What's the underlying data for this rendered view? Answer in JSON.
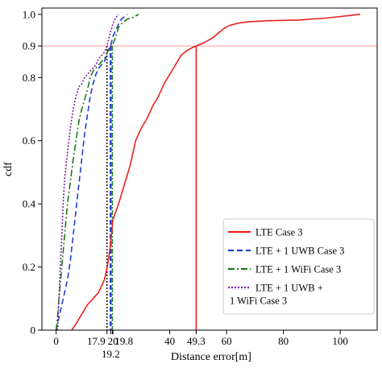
{
  "chart_data": {
    "type": "line",
    "xlabel": "Distance error[m]",
    "ylabel": "cdf",
    "xlim": [
      -5,
      113
    ],
    "ylim": [
      0,
      1.02
    ],
    "x_ticks": [
      0,
      20,
      40,
      60,
      80,
      100
    ],
    "y_ticks": [
      0,
      0.2,
      0.4,
      0.6,
      0.8,
      0.9,
      1.0
    ],
    "y_tick_labels": [
      "0",
      "0.2",
      "0.4",
      "0.6",
      "0.8",
      "0.9",
      "1.0"
    ],
    "grid": false,
    "legend_position": "bottom-right",
    "reference_line": {
      "y": 0.9,
      "color": "#ffb3b3"
    },
    "annotations": [
      {
        "x": 17.9,
        "label": "17.9",
        "color": "#000000"
      },
      {
        "x": 19.2,
        "label": "19.2",
        "color": "#1f3fcc"
      },
      {
        "x": 19.8,
        "label": "19.8",
        "color": "#1a7a1a"
      },
      {
        "x": 49.3,
        "label": "49.3",
        "color": "#e02020"
      }
    ],
    "series": [
      {
        "name": "LTE Case 3",
        "color": "#e8211f",
        "dash": "solid",
        "x": [
          5.5,
          7,
          9,
          11,
          13,
          15,
          17,
          18,
          19,
          20,
          22,
          24,
          26,
          28,
          30,
          32,
          34,
          36,
          38,
          40,
          42,
          44,
          46,
          48,
          49.3,
          52,
          55,
          57,
          59,
          61,
          64,
          68,
          75,
          85,
          95,
          107
        ],
        "y": [
          0,
          0.02,
          0.05,
          0.08,
          0.1,
          0.12,
          0.16,
          0.2,
          0.26,
          0.35,
          0.4,
          0.46,
          0.52,
          0.6,
          0.64,
          0.67,
          0.71,
          0.74,
          0.78,
          0.81,
          0.84,
          0.87,
          0.885,
          0.895,
          0.9,
          0.91,
          0.925,
          0.94,
          0.955,
          0.965,
          0.972,
          0.977,
          0.98,
          0.982,
          0.988,
          1.0
        ]
      },
      {
        "name": "LTE + 1 UWB Case 3",
        "color": "#1f3fcc",
        "dash": "dashed",
        "x": [
          0,
          1,
          2,
          3,
          4,
          5,
          6,
          7,
          8,
          9,
          10,
          11,
          12,
          13,
          14,
          15,
          16,
          17,
          18,
          19.2,
          20,
          21,
          22,
          23,
          25
        ],
        "y": [
          0,
          0.04,
          0.08,
          0.12,
          0.16,
          0.22,
          0.3,
          0.38,
          0.46,
          0.54,
          0.62,
          0.68,
          0.74,
          0.78,
          0.81,
          0.83,
          0.84,
          0.85,
          0.88,
          0.9,
          0.93,
          0.95,
          0.97,
          0.985,
          1.0
        ]
      },
      {
        "name": "LTE + 1 WiFi  Case 3",
        "color": "#1a7a1a",
        "dash": "dashdot",
        "x": [
          0,
          0.5,
          1,
          2,
          3,
          4,
          5,
          6,
          7,
          8,
          9,
          10,
          11,
          12,
          13,
          14,
          15,
          16,
          17,
          18,
          19.8,
          21,
          22,
          23,
          25,
          27,
          29
        ],
        "y": [
          0,
          0.04,
          0.1,
          0.2,
          0.3,
          0.4,
          0.47,
          0.54,
          0.6,
          0.66,
          0.7,
          0.73,
          0.76,
          0.8,
          0.82,
          0.83,
          0.84,
          0.85,
          0.86,
          0.88,
          0.9,
          0.93,
          0.96,
          0.97,
          0.985,
          0.99,
          1.0
        ]
      },
      {
        "name": "LTE + 1 UWB +\n1 WiFi  Case 3",
        "color": "#7b1fa2",
        "dash": "dotted",
        "x": [
          0.5,
          1,
          1.5,
          2,
          2.5,
          3,
          4,
          5,
          6,
          7,
          8,
          9,
          10,
          11,
          12,
          13,
          14,
          15,
          16,
          17,
          17.9,
          19,
          20,
          21,
          22
        ],
        "y": [
          0,
          0.1,
          0.2,
          0.3,
          0.4,
          0.48,
          0.56,
          0.64,
          0.7,
          0.74,
          0.77,
          0.78,
          0.8,
          0.81,
          0.82,
          0.83,
          0.84,
          0.86,
          0.87,
          0.88,
          0.9,
          0.94,
          0.97,
          0.99,
          1.0
        ]
      }
    ]
  }
}
